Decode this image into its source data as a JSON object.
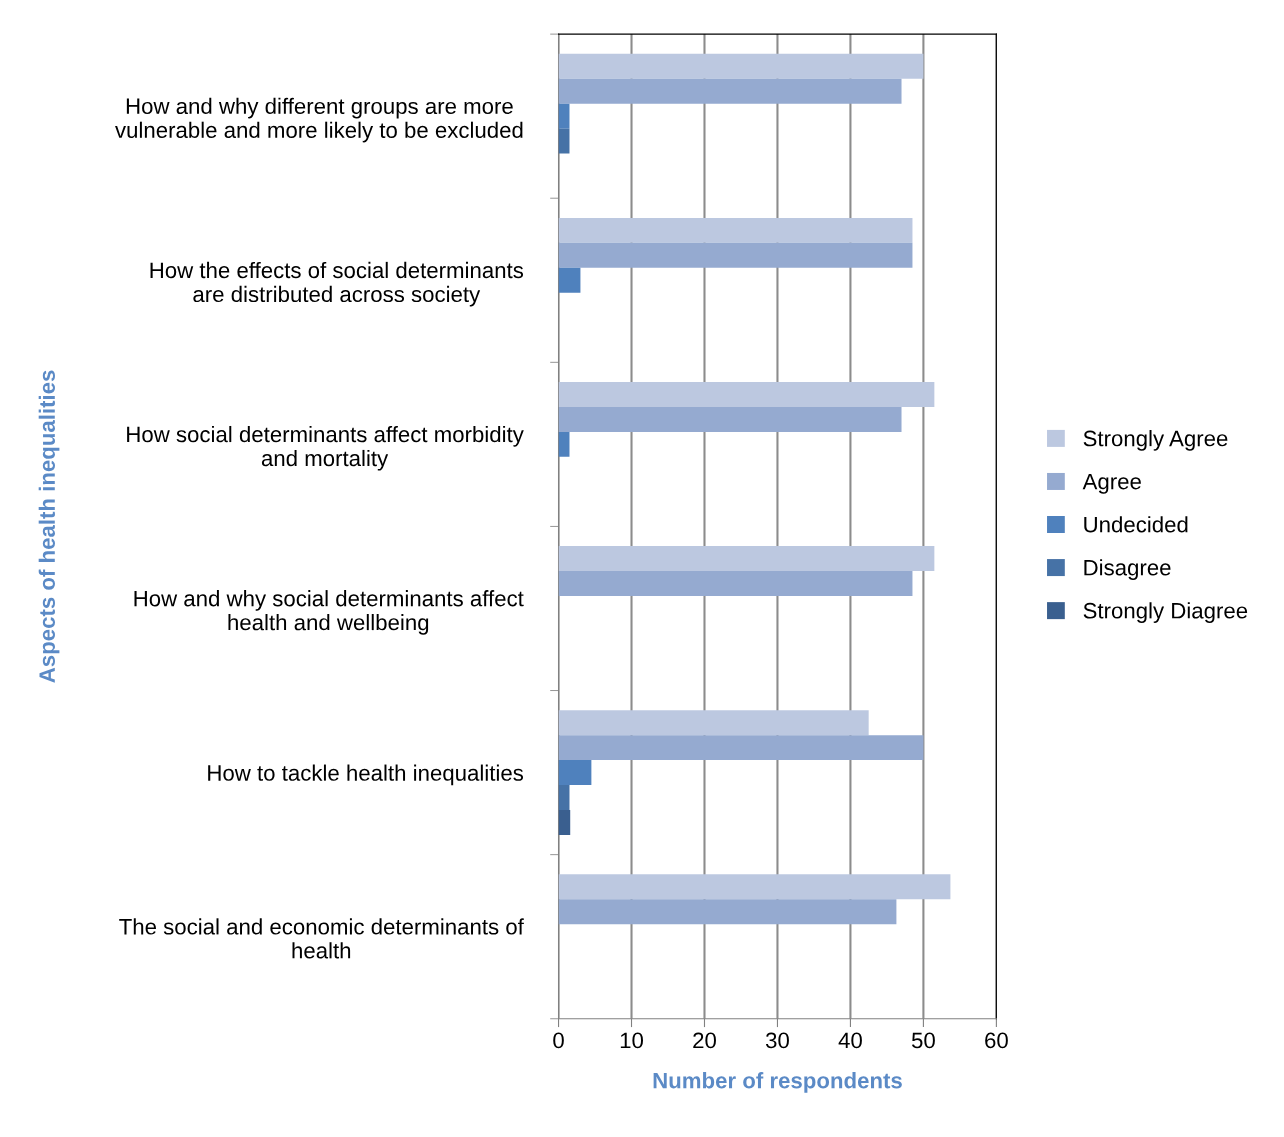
{
  "chart_data": {
    "type": "bar",
    "orientation": "horizontal",
    "xlabel": "Number of respondents",
    "ylabel": "Aspects of health inequalities",
    "categories": [
      "How and why different groups are more\nvulnerable and more likely to be excluded",
      "How the effects of social determinants\nare distributed across society",
      "How social determinants affect morbidity\nand mortality",
      "How and why social determinants affect\nhealth and wellbeing",
      "How to tackle health inequalities",
      "The social and economic determinants of\nhealth"
    ],
    "series": [
      {
        "name": "Strongly Agree",
        "color": "#bcc8e0",
        "values": [
          50,
          48.5,
          51.5,
          51.5,
          42.5,
          53.7
        ]
      },
      {
        "name": "Agree",
        "color": "#95aad0",
        "values": [
          47,
          48.5,
          47,
          48.5,
          50,
          46.3
        ]
      },
      {
        "name": "Undecided",
        "color": "#4f81bd",
        "values": [
          1.5,
          3,
          1.5,
          null,
          4.5,
          null
        ]
      },
      {
        "name": "Disagree",
        "color": "#4672a6",
        "values": [
          1.5,
          null,
          null,
          null,
          1.5,
          null
        ]
      },
      {
        "name": "Strongly Diagree",
        "color": "#3a5f8f",
        "values": [
          null,
          null,
          null,
          null,
          1.6,
          null
        ]
      }
    ],
    "xlim": [
      0,
      60
    ],
    "xticks": [
      0,
      10,
      20,
      30,
      40,
      50,
      60
    ],
    "grid": "x",
    "legend": "right"
  }
}
